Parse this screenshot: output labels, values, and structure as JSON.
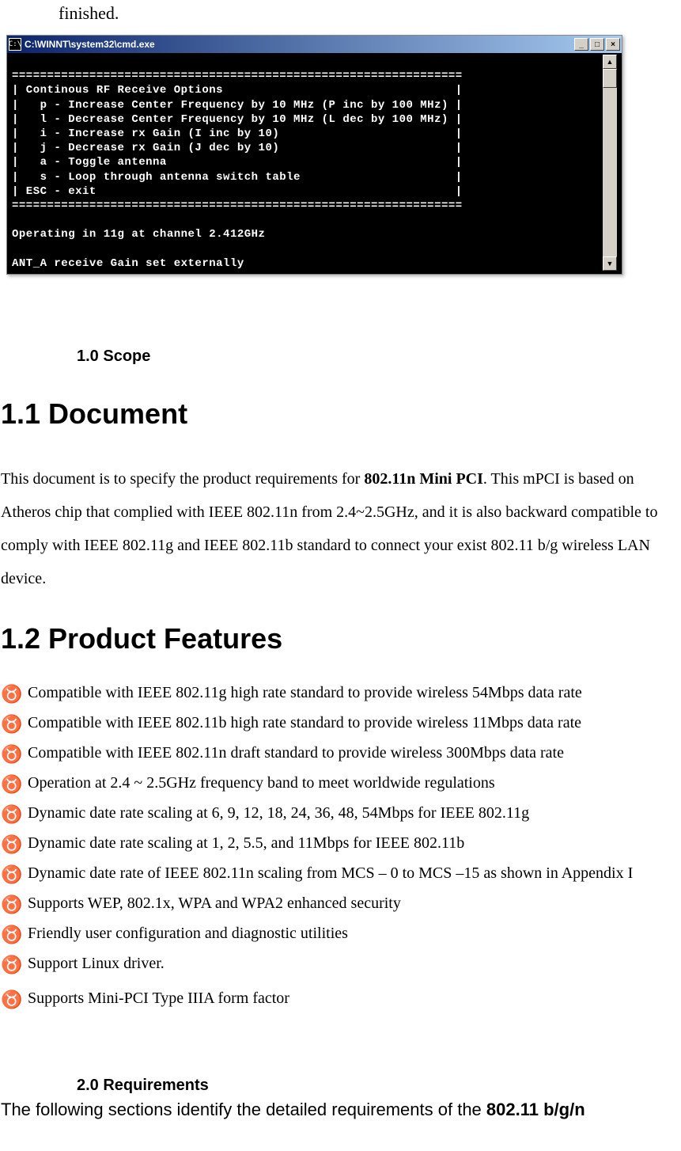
{
  "finished_text": "finished.",
  "cmd": {
    "title": "C:\\WINNT\\system32\\cmd.exe",
    "minimize": "_",
    "maximize": "□",
    "close": "×",
    "scroll_up": "▲",
    "scroll_down": "▼",
    "background_color": "#000000",
    "text_color": "#ffffff",
    "titlebar_gradient_start": "#0a246a",
    "titlebar_gradient_end": "#a6caf0",
    "lines": [
      "",
      "================================================================",
      "| Continous RF Receive Options                                 |",
      "|   p - Increase Center Frequency by 10 MHz (P inc by 100 MHz) |",
      "|   l - Decrease Center Frequency by 10 MHz (L dec by 100 MHz) |",
      "|   i - Increase rx Gain (I inc by 10)                         |",
      "|   j - Decrease rx Gain (J dec by 10)                         |",
      "|   a - Toggle antenna                                         |",
      "|   s - Loop through antenna switch table                      |",
      "| ESC - exit                                                   |",
      "================================================================",
      "",
      "Operating in 11g at channel 2.412GHz",
      "",
      "ANT_A receive Gain set externally"
    ]
  },
  "section_1_0": "1.0 Scope",
  "heading_1_1": "1.1 Document",
  "paragraph": {
    "pre": "This document is to specify the product requirements for ",
    "bold": "802.11n Mini PCI",
    "post": ". This mPCI is based on Atheros chip that complied with IEEE 802.11n from 2.4~2.5GHz, and it is also backward compatible to comply with IEEE 802.11g and IEEE 802.11b standard to connect your exist 802.11 b/g wireless LAN device."
  },
  "heading_1_2": "1.2 Product Features",
  "bullet_char": "♉",
  "features": [
    "Compatible with IEEE 802.11g high rate standard to provide wireless 54Mbps data rate",
    "Compatible with IEEE 802.11b high rate standard to provide wireless 11Mbps data rate",
    "Compatible with IEEE 802.11n draft standard to provide wireless 300Mbps data rate",
    "Operation at 2.4 ~ 2.5GHz frequency band to meet worldwide regulations",
    "Dynamic date rate scaling at 6, 9, 12, 18, 24, 36, 48, 54Mbps for IEEE 802.11g",
    "Dynamic date rate scaling at 1, 2, 5.5, and 11Mbps for IEEE 802.11b",
    "Dynamic date rate of IEEE 802.11n scaling from MCS – 0 to MCS –15 as shown in Appendix I",
    "Supports WEP, 802.1x, WPA and WPA2 enhanced security",
    "Friendly user configuration and diagnostic utilities",
    "Support Linux driver.",
    "Supports Mini-PCI Type IIIA form factor"
  ],
  "section_2_0": "2.0 Requirements",
  "closing": {
    "pre": "The following sections identify the detailed requirements of the ",
    "bold": "802.11 b/g/n"
  }
}
